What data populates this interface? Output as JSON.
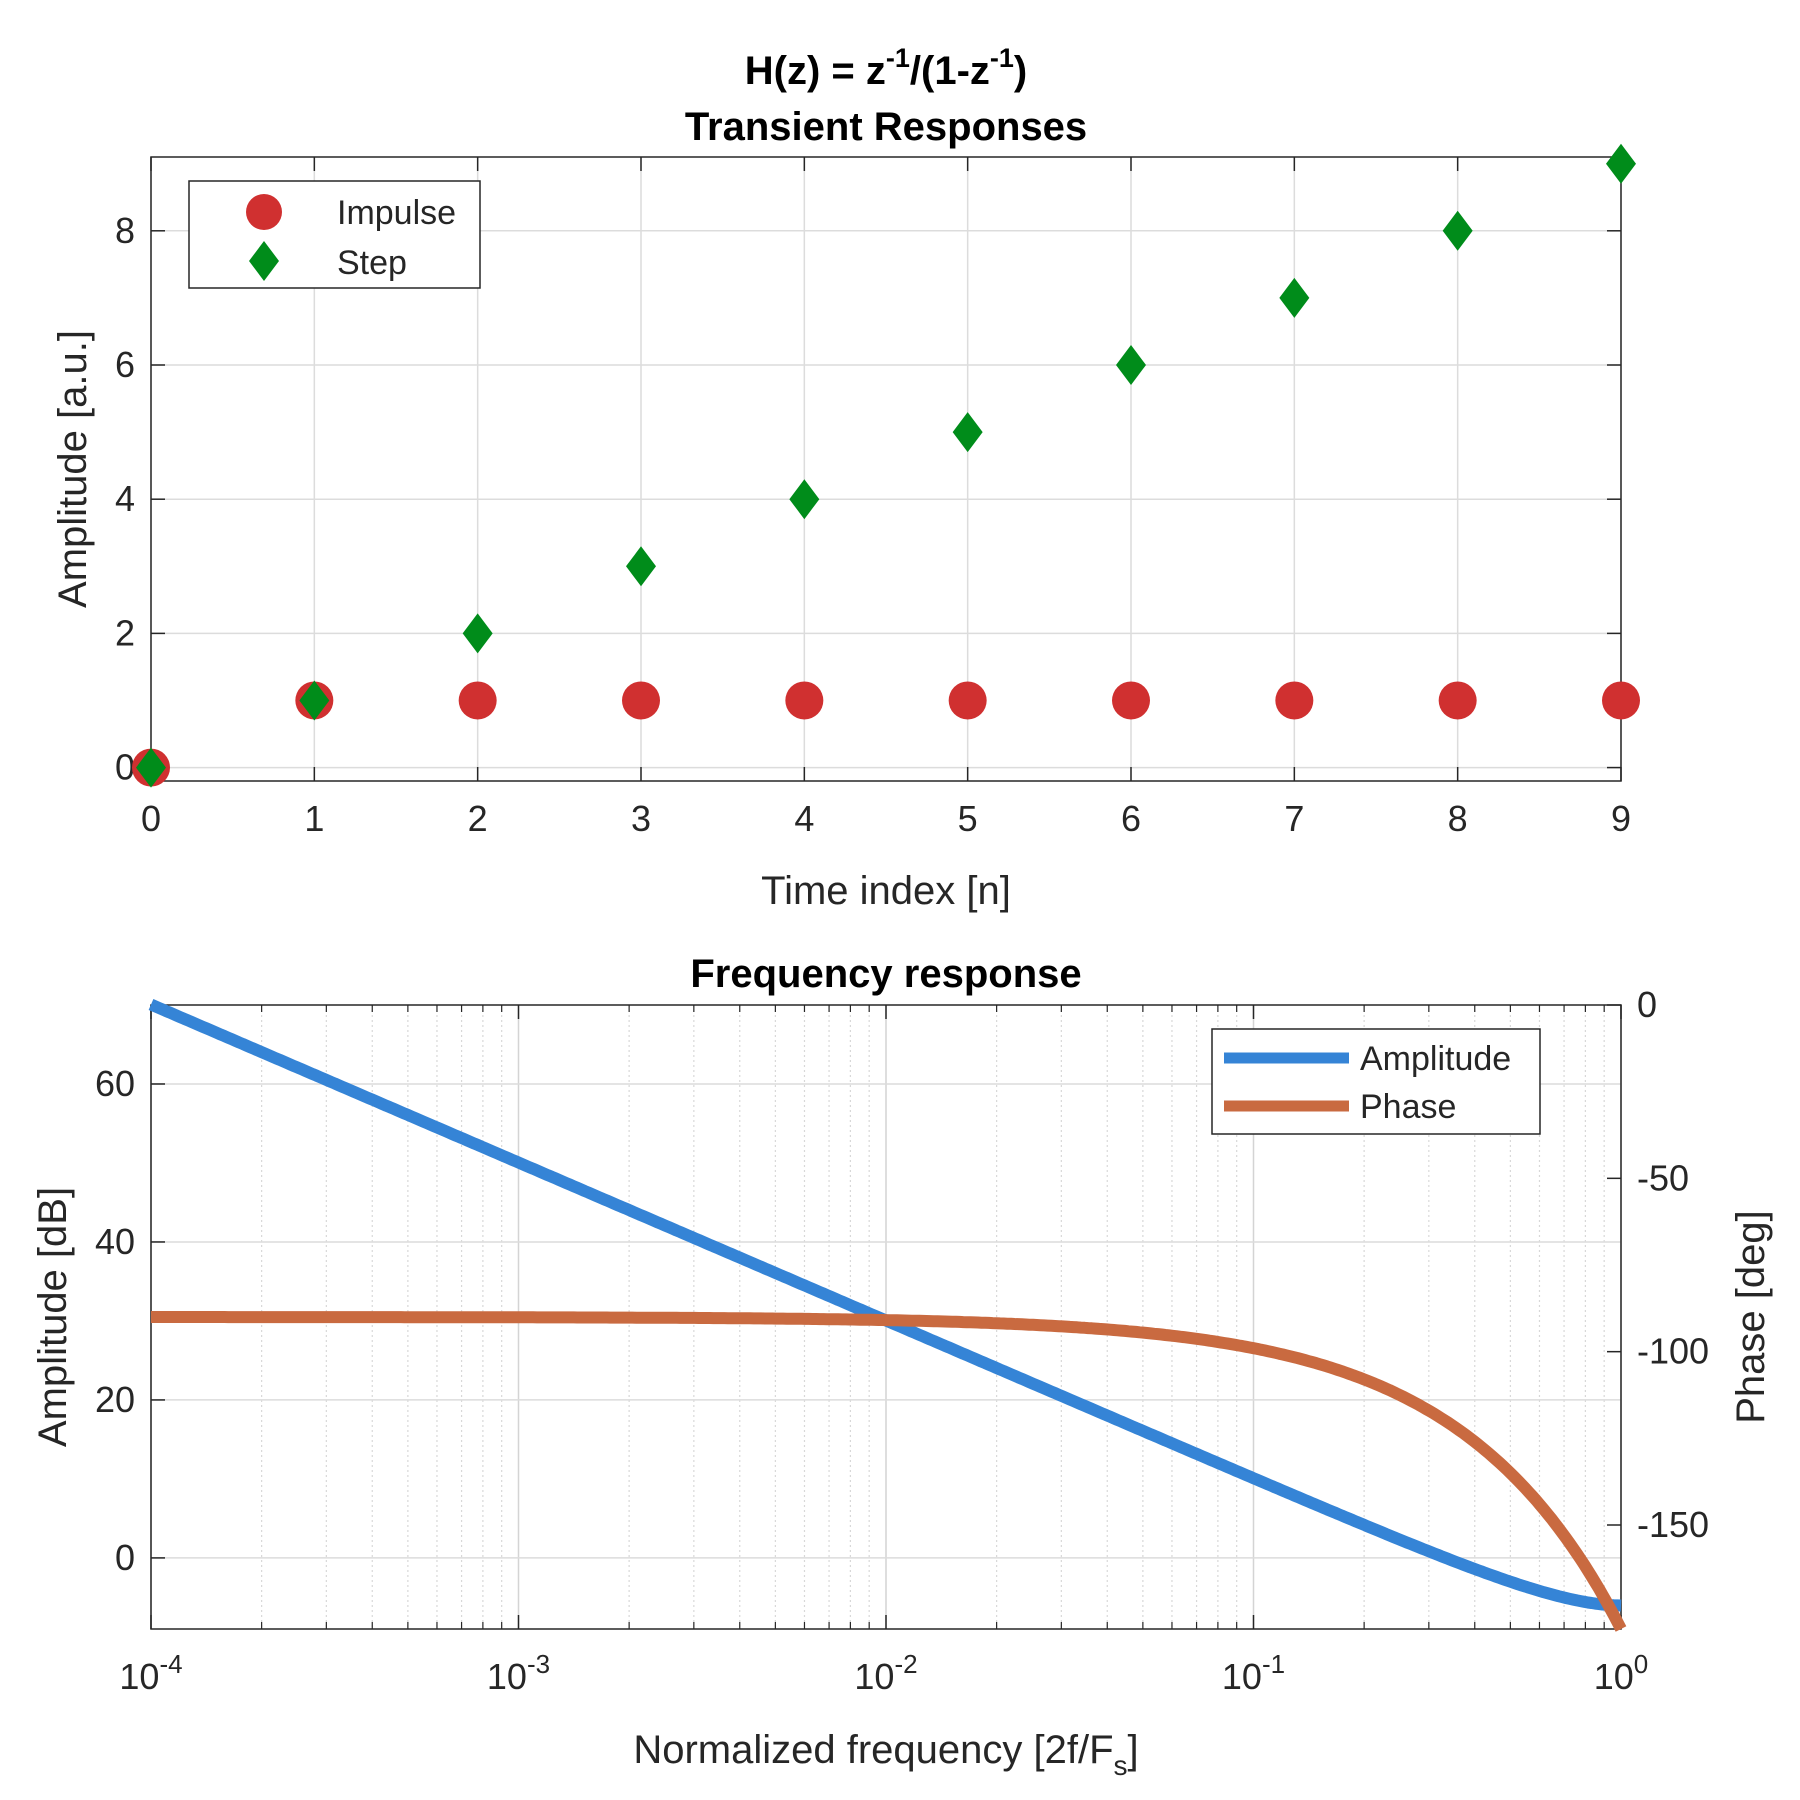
{
  "chart_data": [
    {
      "type": "scatter",
      "title_line1": {
        "base": "H(z) = z",
        "sup1": "-1",
        "mid": "/(1-z",
        "sup2": "-1",
        "end": ")"
      },
      "title_line2": "Transient Responses",
      "xlabel": "Time index [n]",
      "ylabel": "Amplitude [a.u.]",
      "xlim": [
        0,
        9
      ],
      "ylim": [
        -0.2,
        9.1
      ],
      "xticks": [
        0,
        1,
        2,
        3,
        4,
        5,
        6,
        7,
        8,
        9
      ],
      "yticks": [
        0,
        2,
        4,
        6,
        8
      ],
      "grid": true,
      "legend_position": "top-left",
      "series": [
        {
          "name": "Impulse",
          "marker": "circle",
          "color": "#D03030",
          "x": [
            0,
            1,
            2,
            3,
            4,
            5,
            6,
            7,
            8,
            9
          ],
          "values": [
            0,
            1,
            1,
            1,
            1,
            1,
            1,
            1,
            1,
            1
          ]
        },
        {
          "name": "Step",
          "marker": "diamond",
          "color": "#008C1A",
          "x": [
            0,
            1,
            2,
            3,
            4,
            5,
            6,
            7,
            8,
            9
          ],
          "values": [
            0,
            1,
            2,
            3,
            4,
            5,
            6,
            7,
            8,
            9
          ]
        }
      ]
    },
    {
      "type": "line",
      "title": "Frequency response",
      "xlabel": {
        "base": "Normalized frequency [2f/F",
        "sub": "s",
        "end": "]"
      },
      "ylabel": "Amplitude [dB]",
      "ylabel_right": "Phase [deg]",
      "xscale": "log",
      "xlim": [
        0.0001,
        1
      ],
      "ylim": [
        -9,
        70
      ],
      "ylim_right": [
        -180,
        0
      ],
      "xticks": [
        {
          "value": 0.0001,
          "base": "10",
          "exp": "-4"
        },
        {
          "value": 0.001,
          "base": "10",
          "exp": "-3"
        },
        {
          "value": 0.01,
          "base": "10",
          "exp": "-2"
        },
        {
          "value": 0.1,
          "base": "10",
          "exp": "-1"
        },
        {
          "value": 1,
          "base": "10",
          "exp": "0"
        }
      ],
      "yticks": [
        0,
        20,
        40,
        60
      ],
      "yticks_right": [
        0,
        -50,
        -100,
        -150
      ],
      "grid": true,
      "legend_position": "top-right",
      "series": [
        {
          "name": "Amplitude",
          "axis": "left",
          "color": "#3584D6",
          "formula": "20*log10(1/(2*sin(pi*f/2)))"
        },
        {
          "name": "Phase",
          "axis": "right",
          "color": "#C96A40",
          "formula": "-90 - 90*f (deg)"
        }
      ]
    }
  ]
}
